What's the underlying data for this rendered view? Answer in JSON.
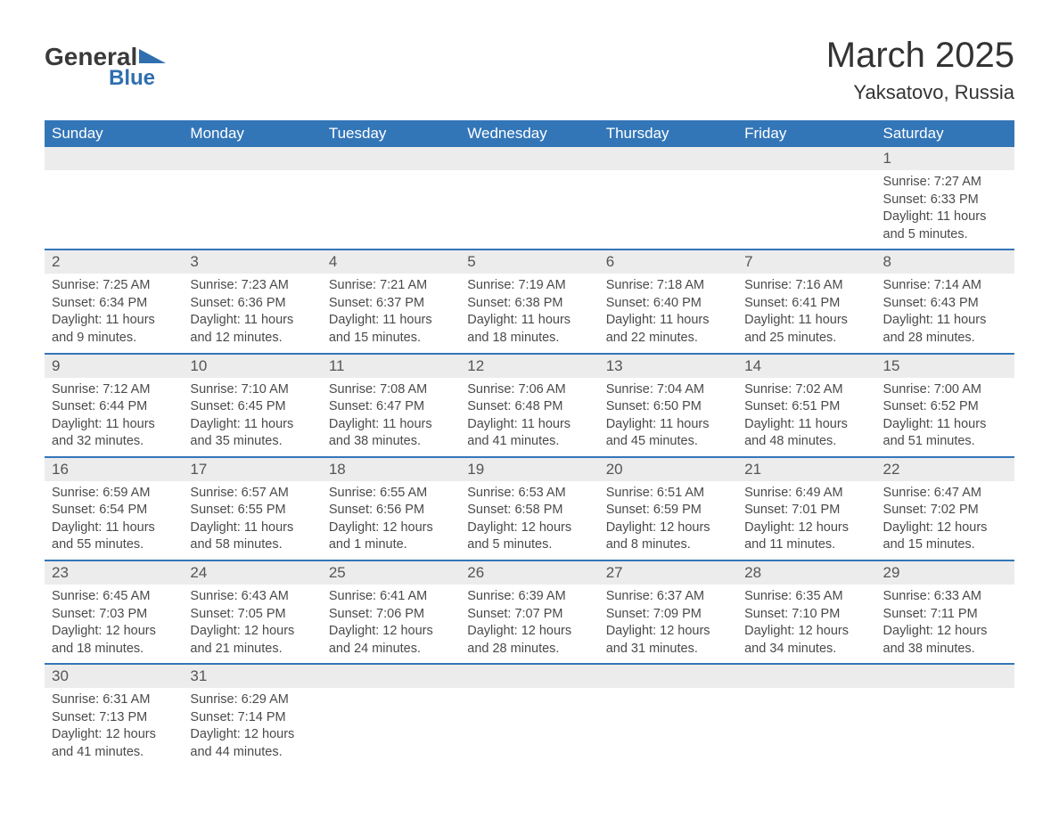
{
  "brand": {
    "part1": "General",
    "part2": "Blue"
  },
  "title": "March 2025",
  "location": "Yaksatovo, Russia",
  "columns": [
    "Sunday",
    "Monday",
    "Tuesday",
    "Wednesday",
    "Thursday",
    "Friday",
    "Saturday"
  ],
  "colors": {
    "header_bg": "#3376b8",
    "header_text": "#ffffff",
    "row_border": "#3376b8",
    "daynum_bg": "#ececec",
    "text": "#4a4a4a",
    "logo_blue": "#2f6fb0"
  },
  "weeks": [
    [
      null,
      null,
      null,
      null,
      null,
      null,
      {
        "n": "1",
        "sunrise": "Sunrise: 7:27 AM",
        "sunset": "Sunset: 6:33 PM",
        "daylight": "Daylight: 11 hours and 5 minutes."
      }
    ],
    [
      {
        "n": "2",
        "sunrise": "Sunrise: 7:25 AM",
        "sunset": "Sunset: 6:34 PM",
        "daylight": "Daylight: 11 hours and 9 minutes."
      },
      {
        "n": "3",
        "sunrise": "Sunrise: 7:23 AM",
        "sunset": "Sunset: 6:36 PM",
        "daylight": "Daylight: 11 hours and 12 minutes."
      },
      {
        "n": "4",
        "sunrise": "Sunrise: 7:21 AM",
        "sunset": "Sunset: 6:37 PM",
        "daylight": "Daylight: 11 hours and 15 minutes."
      },
      {
        "n": "5",
        "sunrise": "Sunrise: 7:19 AM",
        "sunset": "Sunset: 6:38 PM",
        "daylight": "Daylight: 11 hours and 18 minutes."
      },
      {
        "n": "6",
        "sunrise": "Sunrise: 7:18 AM",
        "sunset": "Sunset: 6:40 PM",
        "daylight": "Daylight: 11 hours and 22 minutes."
      },
      {
        "n": "7",
        "sunrise": "Sunrise: 7:16 AM",
        "sunset": "Sunset: 6:41 PM",
        "daylight": "Daylight: 11 hours and 25 minutes."
      },
      {
        "n": "8",
        "sunrise": "Sunrise: 7:14 AM",
        "sunset": "Sunset: 6:43 PM",
        "daylight": "Daylight: 11 hours and 28 minutes."
      }
    ],
    [
      {
        "n": "9",
        "sunrise": "Sunrise: 7:12 AM",
        "sunset": "Sunset: 6:44 PM",
        "daylight": "Daylight: 11 hours and 32 minutes."
      },
      {
        "n": "10",
        "sunrise": "Sunrise: 7:10 AM",
        "sunset": "Sunset: 6:45 PM",
        "daylight": "Daylight: 11 hours and 35 minutes."
      },
      {
        "n": "11",
        "sunrise": "Sunrise: 7:08 AM",
        "sunset": "Sunset: 6:47 PM",
        "daylight": "Daylight: 11 hours and 38 minutes."
      },
      {
        "n": "12",
        "sunrise": "Sunrise: 7:06 AM",
        "sunset": "Sunset: 6:48 PM",
        "daylight": "Daylight: 11 hours and 41 minutes."
      },
      {
        "n": "13",
        "sunrise": "Sunrise: 7:04 AM",
        "sunset": "Sunset: 6:50 PM",
        "daylight": "Daylight: 11 hours and 45 minutes."
      },
      {
        "n": "14",
        "sunrise": "Sunrise: 7:02 AM",
        "sunset": "Sunset: 6:51 PM",
        "daylight": "Daylight: 11 hours and 48 minutes."
      },
      {
        "n": "15",
        "sunrise": "Sunrise: 7:00 AM",
        "sunset": "Sunset: 6:52 PM",
        "daylight": "Daylight: 11 hours and 51 minutes."
      }
    ],
    [
      {
        "n": "16",
        "sunrise": "Sunrise: 6:59 AM",
        "sunset": "Sunset: 6:54 PM",
        "daylight": "Daylight: 11 hours and 55 minutes."
      },
      {
        "n": "17",
        "sunrise": "Sunrise: 6:57 AM",
        "sunset": "Sunset: 6:55 PM",
        "daylight": "Daylight: 11 hours and 58 minutes."
      },
      {
        "n": "18",
        "sunrise": "Sunrise: 6:55 AM",
        "sunset": "Sunset: 6:56 PM",
        "daylight": "Daylight: 12 hours and 1 minute."
      },
      {
        "n": "19",
        "sunrise": "Sunrise: 6:53 AM",
        "sunset": "Sunset: 6:58 PM",
        "daylight": "Daylight: 12 hours and 5 minutes."
      },
      {
        "n": "20",
        "sunrise": "Sunrise: 6:51 AM",
        "sunset": "Sunset: 6:59 PM",
        "daylight": "Daylight: 12 hours and 8 minutes."
      },
      {
        "n": "21",
        "sunrise": "Sunrise: 6:49 AM",
        "sunset": "Sunset: 7:01 PM",
        "daylight": "Daylight: 12 hours and 11 minutes."
      },
      {
        "n": "22",
        "sunrise": "Sunrise: 6:47 AM",
        "sunset": "Sunset: 7:02 PM",
        "daylight": "Daylight: 12 hours and 15 minutes."
      }
    ],
    [
      {
        "n": "23",
        "sunrise": "Sunrise: 6:45 AM",
        "sunset": "Sunset: 7:03 PM",
        "daylight": "Daylight: 12 hours and 18 minutes."
      },
      {
        "n": "24",
        "sunrise": "Sunrise: 6:43 AM",
        "sunset": "Sunset: 7:05 PM",
        "daylight": "Daylight: 12 hours and 21 minutes."
      },
      {
        "n": "25",
        "sunrise": "Sunrise: 6:41 AM",
        "sunset": "Sunset: 7:06 PM",
        "daylight": "Daylight: 12 hours and 24 minutes."
      },
      {
        "n": "26",
        "sunrise": "Sunrise: 6:39 AM",
        "sunset": "Sunset: 7:07 PM",
        "daylight": "Daylight: 12 hours and 28 minutes."
      },
      {
        "n": "27",
        "sunrise": "Sunrise: 6:37 AM",
        "sunset": "Sunset: 7:09 PM",
        "daylight": "Daylight: 12 hours and 31 minutes."
      },
      {
        "n": "28",
        "sunrise": "Sunrise: 6:35 AM",
        "sunset": "Sunset: 7:10 PM",
        "daylight": "Daylight: 12 hours and 34 minutes."
      },
      {
        "n": "29",
        "sunrise": "Sunrise: 6:33 AM",
        "sunset": "Sunset: 7:11 PM",
        "daylight": "Daylight: 12 hours and 38 minutes."
      }
    ],
    [
      {
        "n": "30",
        "sunrise": "Sunrise: 6:31 AM",
        "sunset": "Sunset: 7:13 PM",
        "daylight": "Daylight: 12 hours and 41 minutes."
      },
      {
        "n": "31",
        "sunrise": "Sunrise: 6:29 AM",
        "sunset": "Sunset: 7:14 PM",
        "daylight": "Daylight: 12 hours and 44 minutes."
      },
      null,
      null,
      null,
      null,
      null
    ]
  ]
}
